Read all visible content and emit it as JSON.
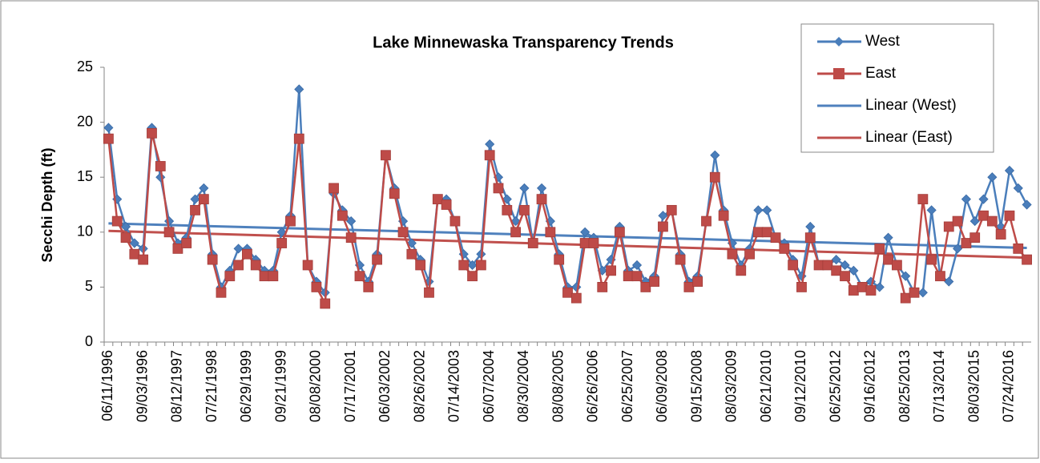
{
  "chart_data": {
    "type": "line",
    "title": "Lake Minnewaska Transparency Trends",
    "y_label": "Secchi Depth (ft)",
    "categories": [
      "06/11/1996",
      null,
      null,
      null,
      "09/03/1996",
      null,
      null,
      null,
      "08/12/1997",
      null,
      null,
      null,
      "07/21/1998",
      null,
      null,
      null,
      "06/29/1999",
      null,
      null,
      null,
      "09/21/1999",
      null,
      null,
      null,
      "08/08/2000",
      null,
      null,
      null,
      "07/17/2001",
      null,
      null,
      null,
      "06/03/2002",
      null,
      null,
      null,
      "08/26/2002",
      null,
      null,
      null,
      "07/14/2003",
      null,
      null,
      null,
      "06/07/2004",
      null,
      null,
      null,
      "08/30/2004",
      null,
      null,
      null,
      "08/08/2005",
      null,
      null,
      null,
      "06/26/2006",
      null,
      null,
      null,
      "06/25/2007",
      null,
      null,
      null,
      "06/09/2008",
      null,
      null,
      null,
      "09/15/2008",
      null,
      null,
      null,
      "08/03/2009",
      null,
      null,
      null,
      "06/21/2010",
      null,
      null,
      null,
      "09/12/2010",
      null,
      null,
      null,
      "06/25/2012",
      null,
      null,
      null,
      "09/16/2012",
      null,
      null,
      null,
      "08/25/2013",
      null,
      null,
      null,
      "07/13/2014",
      null,
      null,
      null,
      "08/03/2015",
      null,
      null,
      null,
      "07/24/2016",
      null,
      null
    ],
    "series": [
      {
        "name": "West",
        "color": "#4a7ebb",
        "marker": "diamond",
        "values": [
          19.5,
          13,
          10.5,
          9,
          8.5,
          19.5,
          15,
          11,
          9,
          9.5,
          13,
          14,
          8,
          5,
          6.5,
          8.5,
          8.5,
          7.5,
          6.5,
          6.5,
          10,
          11.5,
          23,
          7,
          5.5,
          4.5,
          13.5,
          12,
          11,
          7,
          5.5,
          8,
          17,
          14,
          11,
          9,
          7.5,
          5.5,
          13,
          13,
          11,
          8,
          7,
          8,
          18,
          15,
          13,
          11,
          14,
          9,
          14,
          11,
          8,
          5,
          5,
          10,
          9.5,
          6.5,
          7.5,
          10.5,
          6.5,
          7,
          5.5,
          6,
          11.5,
          12,
          8,
          5.5,
          6,
          11,
          17,
          12,
          9,
          7,
          8.5,
          12,
          12,
          9.5,
          9,
          7.5,
          6,
          10.5,
          7,
          7,
          7.5,
          7,
          6.5,
          5,
          5.5,
          5,
          9.5,
          7,
          6,
          4.5,
          4.5,
          12,
          6,
          5.5,
          8.5,
          13,
          11,
          13,
          15,
          10.5,
          15.6,
          14,
          12.5
        ]
      },
      {
        "name": "East",
        "color": "#be4b48",
        "marker": "square",
        "values": [
          18.5,
          11,
          9.5,
          8,
          7.5,
          19,
          16,
          10,
          8.5,
          9,
          12,
          13,
          7.5,
          4.5,
          6,
          7,
          8,
          7,
          6,
          6,
          9,
          11,
          18.5,
          7,
          5,
          3.5,
          14,
          11.5,
          9.5,
          6,
          5,
          7.5,
          17,
          13.5,
          10,
          8,
          7,
          4.5,
          13,
          12.5,
          11,
          7,
          6,
          7,
          17,
          14,
          12,
          10,
          12,
          9,
          13,
          10,
          7.5,
          4.5,
          4,
          9,
          9,
          5,
          6.5,
          10,
          6,
          6,
          5,
          5.5,
          10.5,
          12,
          7.5,
          5,
          5.5,
          11,
          15,
          11.5,
          8,
          6.5,
          8,
          10,
          10,
          9.5,
          8.5,
          7,
          5,
          9.5,
          7,
          7,
          6.5,
          6,
          4.7,
          5,
          4.7,
          8.5,
          7.5,
          7,
          4,
          4.5,
          13,
          7.5,
          6,
          10.5,
          11,
          9,
          9.5,
          11.5,
          11,
          9.8,
          11.5,
          8.5,
          7.5
        ]
      }
    ],
    "trendlines": [
      {
        "name": "Linear (West)",
        "color": "#4f81bd",
        "series": 0
      },
      {
        "name": "Linear (East)",
        "color": "#c0504d",
        "series": 1
      }
    ],
    "ylim": [
      0,
      25
    ],
    "yticks": [
      0,
      5,
      10,
      15,
      20,
      25
    ],
    "grid": false,
    "legend": "top-right"
  }
}
